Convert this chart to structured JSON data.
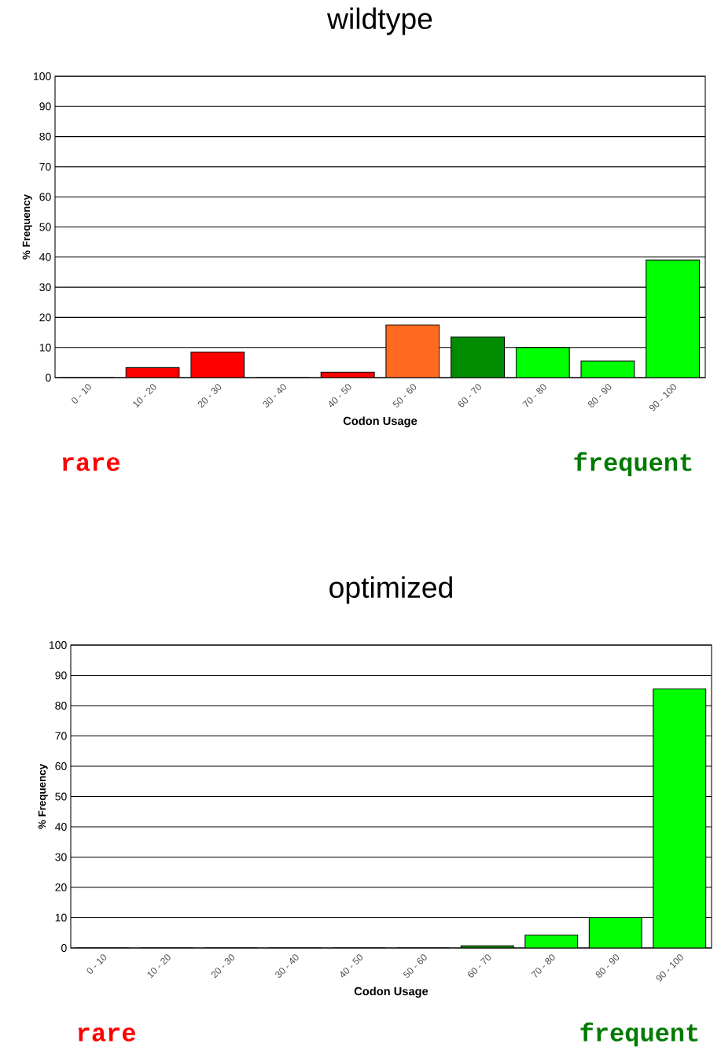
{
  "chart_data": [
    {
      "type": "bar",
      "title": "wildtype",
      "xlabel": "Codon Usage",
      "ylabel": "% Frequency",
      "categories": [
        "0 - 10",
        "10 - 20",
        "20 - 30",
        "30 - 40",
        "40 - 50",
        "50 - 60",
        "60 - 70",
        "70 - 80",
        "80 - 90",
        "90 - 100"
      ],
      "values": [
        0,
        3.3,
        8.5,
        0,
        1.8,
        17.5,
        13.5,
        10,
        5.5,
        39
      ],
      "colors": [
        "#ff0000",
        "#ff0000",
        "#ff0000",
        "#ff0000",
        "#ff0000",
        "#ff6a20",
        "#008c00",
        "#00ff00",
        "#00ff00",
        "#00ff00"
      ],
      "ylim": [
        0,
        100
      ],
      "yticks": [
        0,
        10,
        20,
        30,
        40,
        50,
        60,
        70,
        80,
        90,
        100
      ],
      "grid": "y",
      "annotations": [
        "rare",
        "frequent"
      ]
    },
    {
      "type": "bar",
      "title": "optimized",
      "xlabel": "Codon Usage",
      "ylabel": "% Frequency",
      "categories": [
        "0 - 10",
        "10 - 20",
        "20 - 30",
        "30 - 40",
        "40 - 50",
        "50 - 60",
        "60 - 70",
        "70 - 80",
        "80 - 90",
        "90 - 100"
      ],
      "values": [
        0,
        0,
        0,
        0,
        0,
        0,
        0.7,
        4.2,
        10,
        85.5
      ],
      "colors": [
        "#ff0000",
        "#ff0000",
        "#ff0000",
        "#ff0000",
        "#ff0000",
        "#ff6a20",
        "#008c00",
        "#00ff00",
        "#00ff00",
        "#00ff00"
      ],
      "ylim": [
        0,
        100
      ],
      "yticks": [
        0,
        10,
        20,
        30,
        40,
        50,
        60,
        70,
        80,
        90,
        100
      ],
      "grid": "y",
      "annotations": [
        "rare",
        "frequent"
      ]
    }
  ]
}
